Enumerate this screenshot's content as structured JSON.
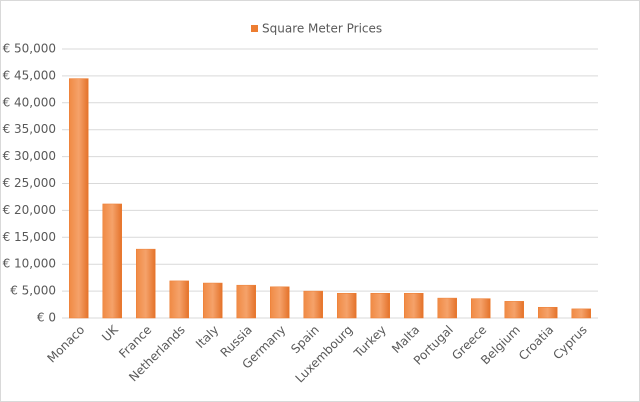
{
  "chart_data": {
    "type": "bar",
    "legend": "Square Meter Prices",
    "categories": [
      "Monaco",
      "UK",
      "France",
      "Netherlands",
      "Italy",
      "Russia",
      "Germany",
      "Spain",
      "Luxembourg",
      "Turkey",
      "Malta",
      "Portugal",
      "Greece",
      "Belgium",
      "Croatia",
      "Cyprus"
    ],
    "values": [
      44500,
      21200,
      12800,
      6900,
      6500,
      6100,
      5800,
      5000,
      4600,
      4600,
      4600,
      3700,
      3600,
      3100,
      2000,
      1700
    ],
    "color": "#ed7d31",
    "ylim": [
      0,
      50000
    ],
    "yticks": [
      {
        "value": 0,
        "label": "€ 0"
      },
      {
        "value": 5000,
        "label": "€ 5,000"
      },
      {
        "value": 10000,
        "label": "€ 10,000"
      },
      {
        "value": 15000,
        "label": "€ 15,000"
      },
      {
        "value": 20000,
        "label": "€ 20,000"
      },
      {
        "value": 25000,
        "label": "€ 25,000"
      },
      {
        "value": 30000,
        "label": "€ 30,000"
      },
      {
        "value": 35000,
        "label": "€ 35,000"
      },
      {
        "value": 40000,
        "label": "€ 40,000"
      },
      {
        "value": 45000,
        "label": "€ 45,000"
      },
      {
        "value": 50000,
        "label": "€ 50,000"
      }
    ],
    "grid": true
  }
}
